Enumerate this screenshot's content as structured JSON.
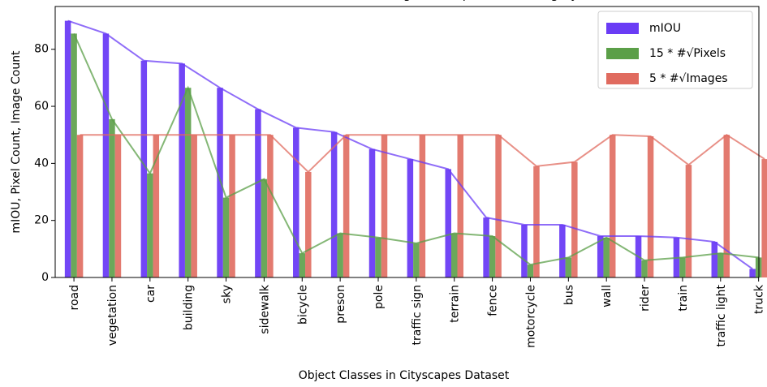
{
  "chart_data": {
    "type": "bar",
    "title": "mIOU, Pixel Count, and Image Count per Class Category",
    "xlabel": "Object Classes in Cityscapes Dataset",
    "ylabel": "mIOU, Pixel Count, Image Count",
    "ylim": [
      0,
      95
    ],
    "yticks": [
      0,
      20,
      40,
      60,
      80
    ],
    "grid": false,
    "legend_position": "top-right",
    "categories": [
      "road",
      "vegetation",
      "car",
      "building",
      "sky",
      "sidewalk",
      "bicycle",
      "preson",
      "pole",
      "traffic sign",
      "terrain",
      "fence",
      "motorcycle",
      "bus",
      "wall",
      "rider",
      "train",
      "traffic light",
      "truck"
    ],
    "series": [
      {
        "name": "mIOU",
        "color": "#6a3cf5",
        "values": [
          90,
          85.5,
          76,
          75,
          66.5,
          59,
          52.5,
          51,
          45,
          41.5,
          38,
          21,
          18.5,
          18.5,
          14.5,
          14.5,
          14,
          12.5,
          3
        ]
      },
      {
        "name": "15 * #√Pixels",
        "color": "#5b9f48",
        "values": [
          85.5,
          55.5,
          36.5,
          66.5,
          28,
          34.5,
          8.5,
          15.5,
          14,
          12,
          15.5,
          14.5,
          4.5,
          7,
          14,
          6,
          7,
          8.5,
          7
        ]
      },
      {
        "name": "5 * #√Images",
        "color": "#e06b5f",
        "values": [
          50,
          50,
          50,
          50,
          50,
          50,
          37,
          50,
          50,
          50,
          50,
          50,
          39,
          40.5,
          50,
          49.5,
          39.5,
          50,
          41.5
        ]
      }
    ]
  }
}
